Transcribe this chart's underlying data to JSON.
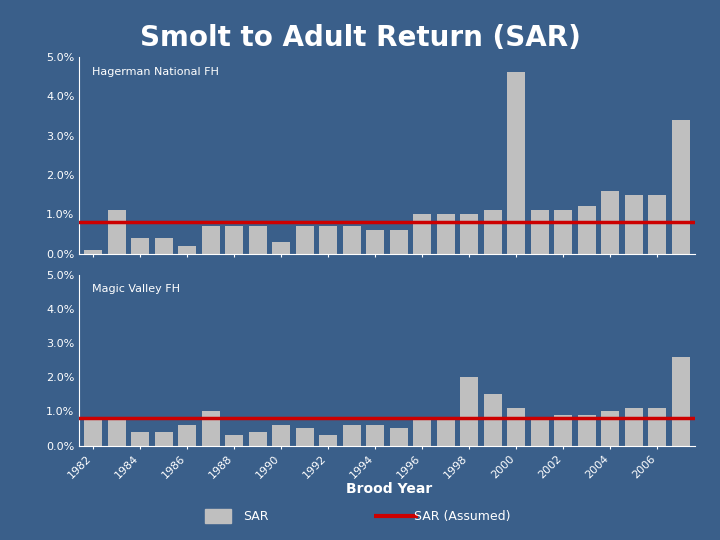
{
  "title": "Smolt to Adult Return (SAR)",
  "background_color": "#3A5F8A",
  "bar_color": "#BFBFBF",
  "line_color": "#CC0000",
  "line_value": 0.008,
  "brood_years": [
    1982,
    1983,
    1984,
    1985,
    1986,
    1987,
    1988,
    1989,
    1990,
    1991,
    1992,
    1993,
    1994,
    1995,
    1996,
    1997,
    1998,
    1999,
    2000,
    2001,
    2002,
    2003,
    2004,
    2005,
    2006,
    2007
  ],
  "hagerman_sar": [
    0.001,
    0.011,
    0.004,
    0.004,
    0.002,
    0.007,
    0.007,
    0.007,
    0.003,
    0.007,
    0.007,
    0.007,
    0.006,
    0.006,
    0.01,
    0.01,
    0.01,
    0.011,
    0.046,
    0.011,
    0.011,
    0.012,
    0.016,
    0.015,
    0.015,
    0.034
  ],
  "magic_valley_sar": [
    0.008,
    0.008,
    0.004,
    0.004,
    0.006,
    0.01,
    0.003,
    0.004,
    0.006,
    0.005,
    0.003,
    0.006,
    0.006,
    0.005,
    0.008,
    0.008,
    0.02,
    0.015,
    0.011,
    0.008,
    0.009,
    0.009,
    0.01,
    0.011,
    0.011,
    0.026
  ],
  "xlabel": "Brood Year",
  "subtitle1": "Hagerman National FH",
  "subtitle2": "Magic Valley FH",
  "legend_sar": "SAR",
  "legend_assumed": "SAR (Assumed)",
  "title_fontsize": 20,
  "subtitle_fontsize": 8,
  "tick_fontsize": 8,
  "xlabel_fontsize": 10
}
